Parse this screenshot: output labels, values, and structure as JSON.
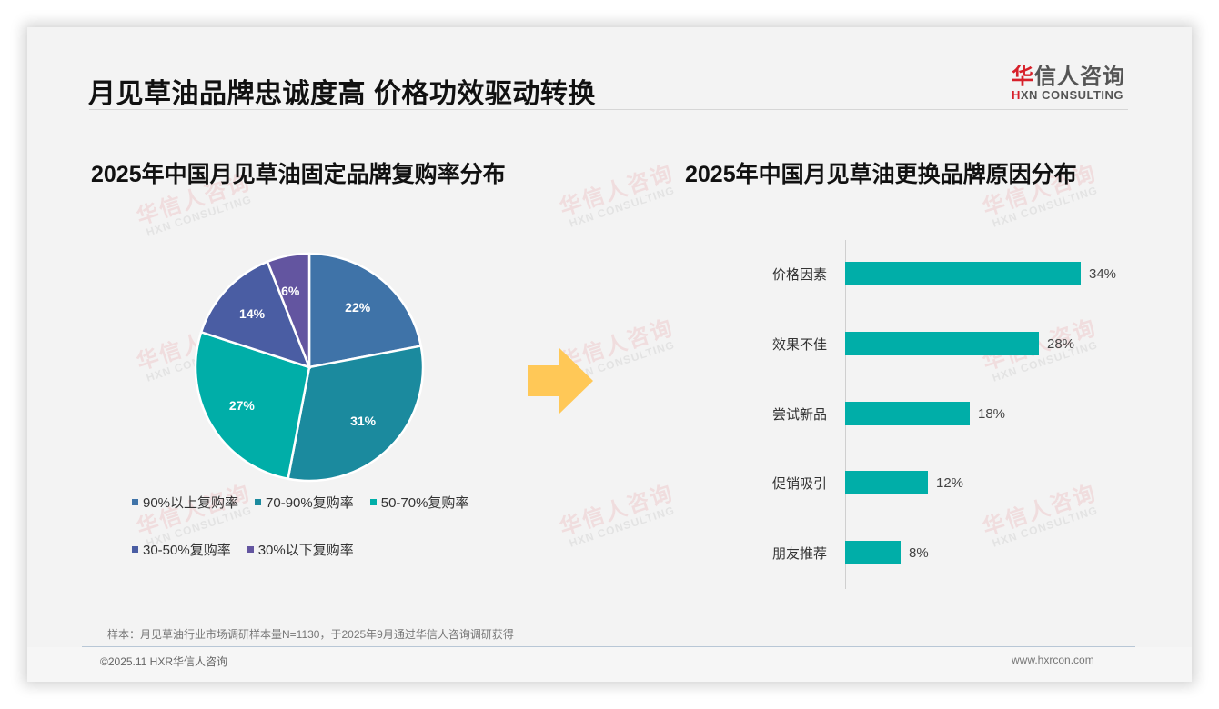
{
  "header": {
    "title": "月见草油品牌忠诚度高 价格功效驱动转换",
    "logo": {
      "cn_first": "华",
      "cn_rest": "信人咨询",
      "en_first": "H",
      "en_rest": "XN CONSULTING"
    }
  },
  "watermark": {
    "cn": "华信人咨询",
    "en": "HXN CONSULTING"
  },
  "colors": {
    "pie": [
      "#3f73a8",
      "#1b8a9e",
      "#00aea8",
      "#4a5da3",
      "#6355a0"
    ],
    "bar": "#00aea8",
    "arrow": "#ffc857",
    "logo_red": "#d7202a"
  },
  "chart_data": [
    {
      "type": "pie",
      "title": "2025年中国月见草油固定品牌复购率分布",
      "categories": [
        "90%以上复购率",
        "70-90%复购率",
        "50-70%复购率",
        "30-50%复购率",
        "30%以下复购率"
      ],
      "values": [
        22,
        31,
        27,
        14,
        6
      ],
      "labels": [
        "22%",
        "31%",
        "27%",
        "14%",
        "6%"
      ],
      "legend_position": "bottom"
    },
    {
      "type": "bar",
      "orientation": "horizontal",
      "title": "2025年中国月见草油更换品牌原因分布",
      "categories": [
        "价格因素",
        "效果不佳",
        "尝试新品",
        "促销吸引",
        "朋友推荐"
      ],
      "values": [
        34,
        28,
        18,
        12,
        8
      ],
      "labels": [
        "34%",
        "28%",
        "18%",
        "12%",
        "8%"
      ],
      "xlabel": "",
      "ylabel": "",
      "grid": false
    }
  ],
  "pie": {
    "legend": [
      {
        "label": "90%以上复购率"
      },
      {
        "label": "70-90%复购率"
      },
      {
        "label": "50-70%复购率"
      },
      {
        "label": "30-50%复购率"
      },
      {
        "label": "30%以下复购率"
      }
    ]
  },
  "footer": {
    "note": "样本：月见草油行业市场调研样本量N=1130，于2025年9月通过华信人咨询调研获得",
    "copyright": "©2025.11 HXR华信人咨询",
    "website": "www.hxrcon.com"
  }
}
